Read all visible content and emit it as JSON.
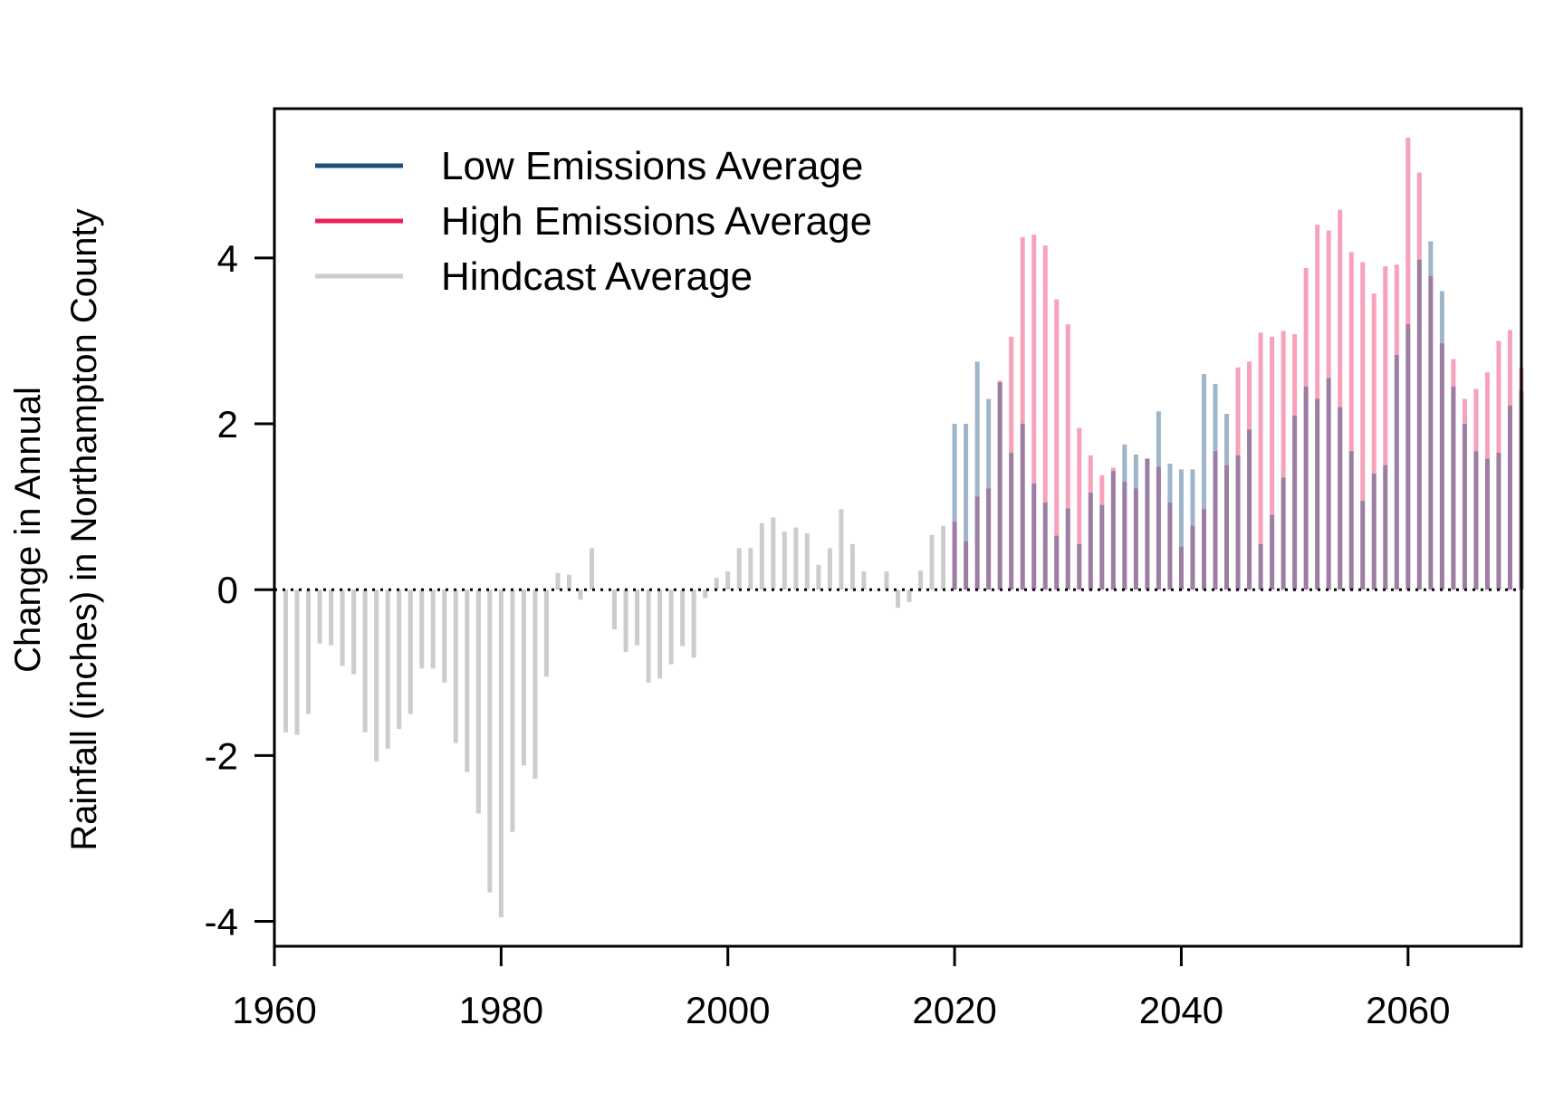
{
  "chart_data": {
    "type": "bar",
    "title": "",
    "ylabel_lines": [
      "Change in Annual",
      "Rainfall (inches) in Northampton County"
    ],
    "xlabel": "",
    "xlim": [
      1960,
      2070
    ],
    "ylim": [
      -4.3,
      5.8
    ],
    "x_ticks": [
      1960,
      1980,
      2000,
      2020,
      2040,
      2060
    ],
    "y_ticks": [
      -4,
      -2,
      0,
      2,
      4
    ],
    "x_tick_labels": [
      "1960",
      "1980",
      "2000",
      "2020",
      "2040",
      "2060"
    ],
    "y_tick_labels": [
      "-4",
      "-2",
      "0",
      "2",
      "4"
    ],
    "reference_line": 0,
    "legend": {
      "position": "top-left",
      "items": [
        {
          "label": "Low Emissions Average",
          "color": "#1b4f80"
        },
        {
          "label": "High Emissions Average",
          "color": "#ef1f5b"
        },
        {
          "label": "Hindcast Average",
          "color": "#cccccc"
        }
      ]
    },
    "series": [
      {
        "name": "Hindcast Average",
        "color": "#cccccc",
        "x": [
          1961,
          1962,
          1963,
          1964,
          1965,
          1966,
          1967,
          1968,
          1969,
          1970,
          1971,
          1972,
          1973,
          1974,
          1975,
          1976,
          1977,
          1978,
          1979,
          1980,
          1981,
          1982,
          1983,
          1984,
          1985,
          1986,
          1987,
          1988,
          1989,
          1990,
          1991,
          1992,
          1993,
          1994,
          1995,
          1996,
          1997,
          1998,
          1999,
          2000,
          2001,
          2002,
          2003,
          2004,
          2005,
          2006,
          2007,
          2008,
          2009,
          2010,
          2011,
          2012,
          2013,
          2014,
          2015,
          2016,
          2017,
          2018,
          2019
        ],
        "values": [
          -1.72,
          -1.75,
          -1.5,
          -0.65,
          -0.67,
          -0.92,
          -1.02,
          -1.72,
          -2.07,
          -1.92,
          -1.68,
          -1.5,
          -0.95,
          -0.95,
          -1.12,
          -1.85,
          -2.2,
          -2.7,
          -3.65,
          -3.95,
          -2.92,
          -2.12,
          -2.28,
          -1.05,
          0.2,
          0.18,
          -0.12,
          0.5,
          0.0,
          -0.48,
          -0.75,
          -0.67,
          -1.12,
          -1.07,
          -0.9,
          -0.68,
          -0.82,
          -0.1,
          0.14,
          0.22,
          0.5,
          0.5,
          0.8,
          0.87,
          0.7,
          0.75,
          0.68,
          0.3,
          0.5,
          0.97,
          0.55,
          0.22,
          0.0,
          0.22,
          -0.22,
          -0.15,
          0.23,
          0.66,
          0.77
        ]
      },
      {
        "name": "High Emissions Average",
        "color": "#ef1f5b",
        "x": [
          2020,
          2021,
          2022,
          2023,
          2024,
          2025,
          2026,
          2027,
          2028,
          2029,
          2030,
          2031,
          2032,
          2033,
          2034,
          2035,
          2036,
          2037,
          2038,
          2039,
          2040,
          2041,
          2042,
          2043,
          2044,
          2045,
          2046,
          2047,
          2048,
          2049,
          2050,
          2051,
          2052,
          2053,
          2054,
          2055,
          2056,
          2057,
          2058,
          2059,
          2060,
          2061,
          2062,
          2063,
          2064,
          2065,
          2066,
          2067,
          2068,
          2069,
          2070
        ],
        "values": [
          0.82,
          0.58,
          1.12,
          1.22,
          2.52,
          3.05,
          4.25,
          4.28,
          4.15,
          3.5,
          3.2,
          1.95,
          1.62,
          1.38,
          1.47,
          1.3,
          1.22,
          1.58,
          1.48,
          1.05,
          0.52,
          0.77,
          0.97,
          1.67,
          1.5,
          2.68,
          2.75,
          3.1,
          3.05,
          3.12,
          3.08,
          3.88,
          4.4,
          4.33,
          4.58,
          4.07,
          3.95,
          3.57,
          3.9,
          3.92,
          5.45,
          5.03,
          3.78,
          2.97,
          2.78,
          2.3,
          2.42,
          2.62,
          3.0,
          3.13,
          2.68
        ]
      },
      {
        "name": "Low Emissions Average",
        "color": "#1b4f80",
        "x": [
          2020,
          2021,
          2022,
          2023,
          2024,
          2025,
          2026,
          2027,
          2028,
          2029,
          2030,
          2031,
          2032,
          2033,
          2034,
          2035,
          2036,
          2037,
          2038,
          2039,
          2040,
          2041,
          2042,
          2043,
          2044,
          2045,
          2046,
          2047,
          2048,
          2049,
          2050,
          2051,
          2052,
          2053,
          2054,
          2055,
          2056,
          2057,
          2058,
          2059,
          2060,
          2061,
          2062,
          2063,
          2064,
          2065,
          2066,
          2067,
          2068,
          2069,
          2070
        ],
        "values": [
          2.0,
          2.0,
          2.75,
          2.3,
          2.5,
          1.65,
          2.0,
          1.28,
          1.05,
          0.65,
          0.98,
          0.55,
          1.17,
          1.02,
          1.43,
          1.75,
          1.63,
          1.58,
          2.15,
          1.52,
          1.45,
          1.45,
          2.6,
          2.48,
          2.12,
          1.62,
          1.93,
          0.55,
          0.9,
          1.35,
          2.1,
          2.45,
          2.3,
          2.55,
          2.2,
          1.67,
          1.07,
          1.4,
          1.5,
          2.83,
          3.2,
          3.98,
          4.2,
          3.6,
          2.45,
          2.0,
          1.67,
          1.58,
          1.65,
          2.22,
          2.4
        ]
      }
    ]
  }
}
